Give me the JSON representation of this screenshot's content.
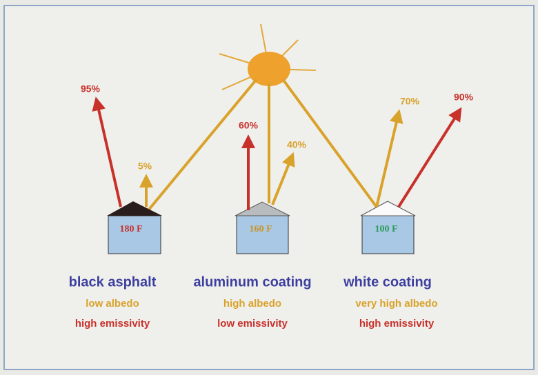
{
  "houses": [
    {
      "name": "black asphalt",
      "temperature": "180 F",
      "albedo": "low albedo",
      "emissivity": "high emissivity",
      "emitted": "95%",
      "reflected": "5%"
    },
    {
      "name": "aluminum coating",
      "temperature": "160 F",
      "albedo": "high albedo",
      "emissivity": "low emissivity",
      "emitted": "60%",
      "reflected": "40%"
    },
    {
      "name": "white coating",
      "temperature": "100 F",
      "albedo": "very high albedo",
      "emissivity": "high emissivity",
      "emitted": "90%",
      "reflected": "70%"
    }
  ]
}
